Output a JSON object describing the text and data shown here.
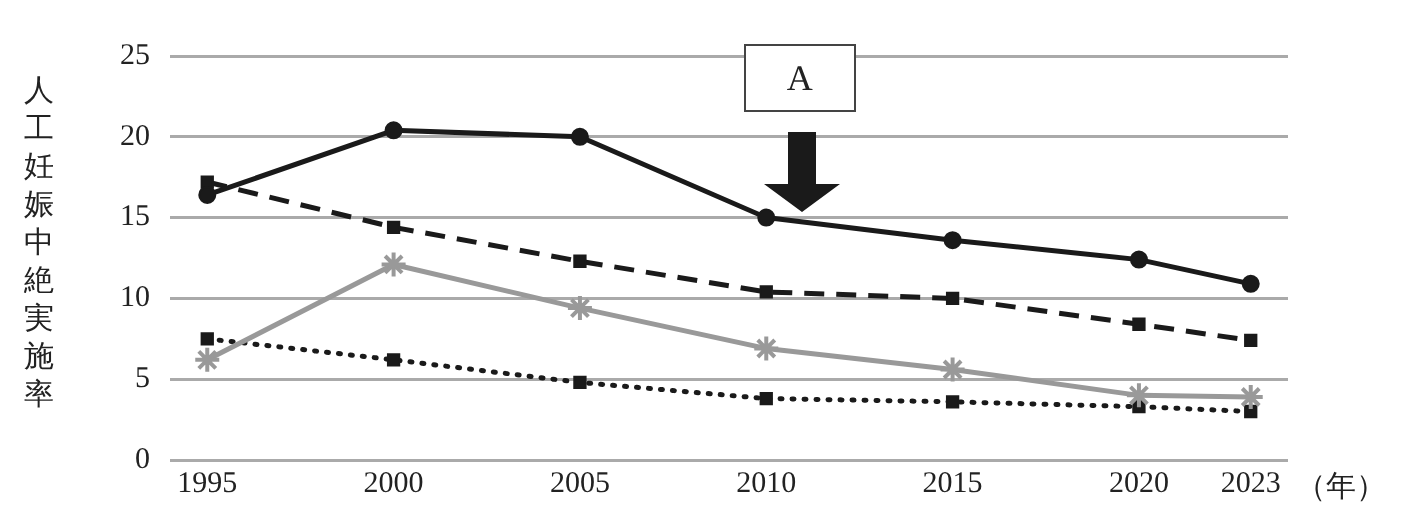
{
  "chart_data": {
    "type": "line",
    "ylabel": "人工妊娠中絶実施率",
    "xlabel": "（年）",
    "x": [
      1995,
      2000,
      2005,
      2010,
      2015,
      2020,
      2023
    ],
    "xlim": [
      1994,
      2024
    ],
    "xticks": [
      1995,
      2000,
      2005,
      2010,
      2015,
      2020,
      2023
    ],
    "ylim": [
      0,
      25
    ],
    "yticks": [
      0,
      5,
      10,
      15,
      20,
      25
    ],
    "grid": "y",
    "legend": false,
    "series": [
      {
        "color": "#1a1a1a",
        "marker": "circle",
        "line_style": "solid",
        "values": [
          16.4,
          20.4,
          20.0,
          15.0,
          13.6,
          12.4,
          10.9
        ]
      },
      {
        "color": "#1a1a1a",
        "marker": "square",
        "line_style": "dashed",
        "values": [
          17.2,
          14.4,
          12.3,
          10.4,
          10.0,
          8.4,
          7.4
        ]
      },
      {
        "color": "#999999",
        "marker": "cross",
        "line_style": "solid",
        "values": [
          6.2,
          12.1,
          9.4,
          6.9,
          5.6,
          4.0,
          3.9
        ]
      },
      {
        "color": "#1a1a1a",
        "marker": "square",
        "line_style": "dotted",
        "values": [
          7.5,
          6.2,
          4.8,
          3.8,
          3.6,
          3.3,
          3.0
        ]
      }
    ],
    "annotations": [
      "A"
    ]
  }
}
